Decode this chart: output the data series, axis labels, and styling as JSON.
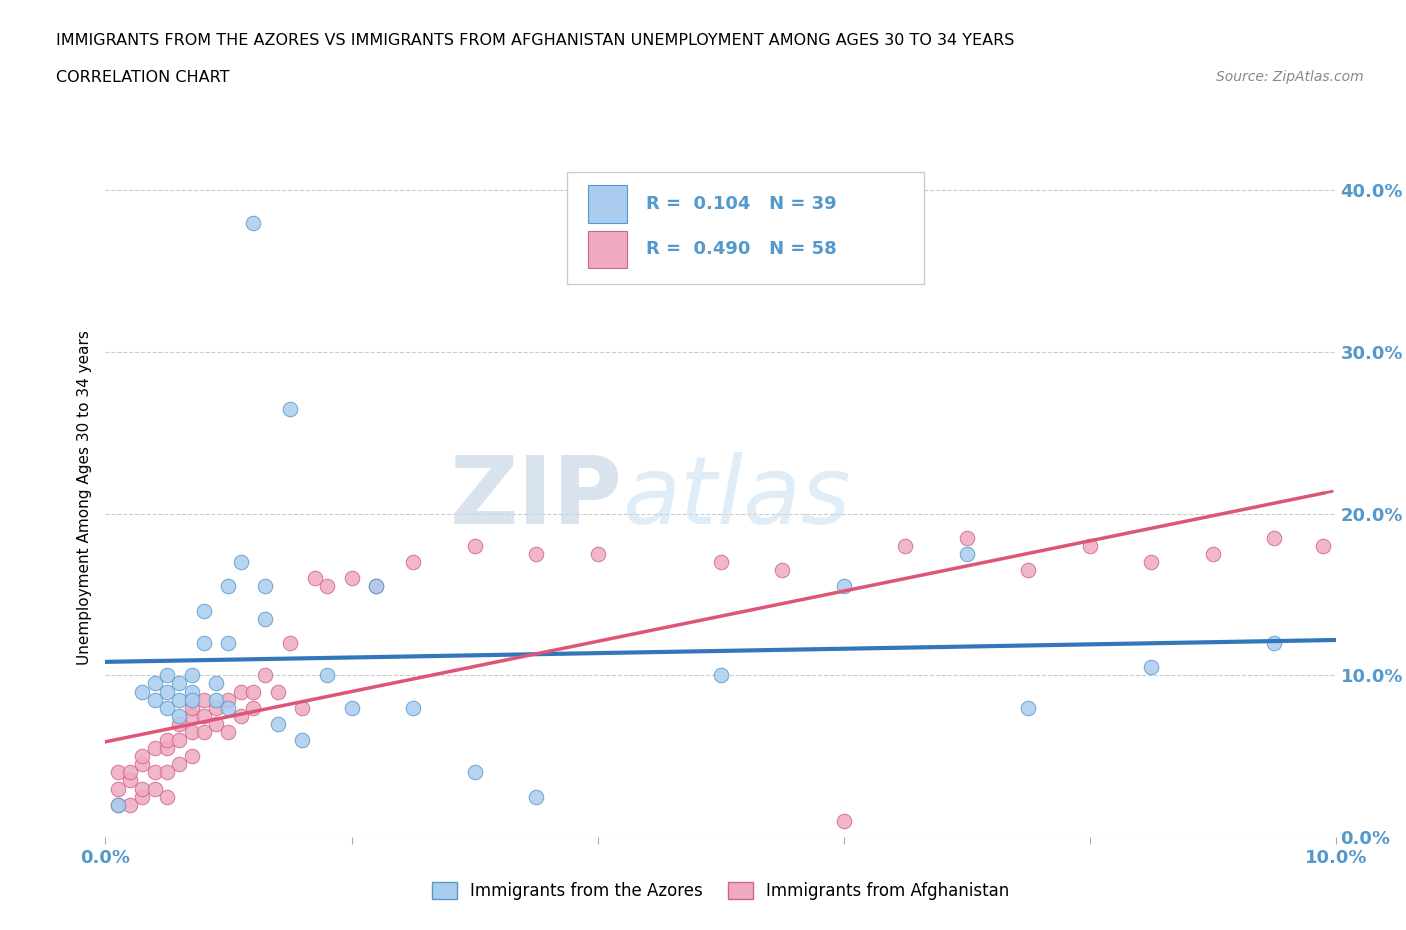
{
  "title_line1": "IMMIGRANTS FROM THE AZORES VS IMMIGRANTS FROM AFGHANISTAN UNEMPLOYMENT AMONG AGES 30 TO 34 YEARS",
  "title_line2": "CORRELATION CHART",
  "source_text": "Source: ZipAtlas.com",
  "ylabel": "Unemployment Among Ages 30 to 34 years",
  "xlim": [
    0.0,
    0.1
  ],
  "ylim": [
    0.0,
    0.42
  ],
  "xtick_positions": [
    0.0,
    0.02,
    0.04,
    0.06,
    0.08,
    0.1
  ],
  "ytick_positions": [
    0.0,
    0.1,
    0.2,
    0.3,
    0.4
  ],
  "grid_color": "#cccccc",
  "background_color": "#ffffff",
  "azores_color": "#aaccee",
  "afghanistan_color": "#f0aac0",
  "azores_edge_color": "#5599cc",
  "afghanistan_edge_color": "#cc6688",
  "azores_line_color": "#3377bb",
  "afghanistan_line_color": "#dd5577",
  "watermark_zip": "ZIP",
  "watermark_atlas": "atlas",
  "azores_R": 0.104,
  "azores_N": 39,
  "afghanistan_R": 0.49,
  "afghanistan_N": 58,
  "tick_label_color": "#5599cc",
  "azores_x": [
    0.001,
    0.003,
    0.004,
    0.004,
    0.005,
    0.005,
    0.005,
    0.006,
    0.006,
    0.006,
    0.007,
    0.007,
    0.007,
    0.008,
    0.008,
    0.009,
    0.009,
    0.01,
    0.01,
    0.01,
    0.011,
    0.012,
    0.013,
    0.013,
    0.014,
    0.015,
    0.016,
    0.018,
    0.02,
    0.022,
    0.025,
    0.03,
    0.035,
    0.05,
    0.06,
    0.07,
    0.075,
    0.085,
    0.095
  ],
  "azores_y": [
    0.02,
    0.09,
    0.085,
    0.095,
    0.1,
    0.09,
    0.08,
    0.095,
    0.085,
    0.075,
    0.1,
    0.09,
    0.085,
    0.14,
    0.12,
    0.095,
    0.085,
    0.155,
    0.12,
    0.08,
    0.17,
    0.38,
    0.155,
    0.135,
    0.07,
    0.265,
    0.06,
    0.1,
    0.08,
    0.155,
    0.08,
    0.04,
    0.025,
    0.1,
    0.155,
    0.175,
    0.08,
    0.105,
    0.12
  ],
  "afghanistan_x": [
    0.001,
    0.001,
    0.001,
    0.002,
    0.002,
    0.002,
    0.003,
    0.003,
    0.003,
    0.003,
    0.004,
    0.004,
    0.004,
    0.005,
    0.005,
    0.005,
    0.005,
    0.006,
    0.006,
    0.006,
    0.007,
    0.007,
    0.007,
    0.007,
    0.008,
    0.008,
    0.008,
    0.009,
    0.009,
    0.01,
    0.01,
    0.011,
    0.011,
    0.012,
    0.012,
    0.013,
    0.014,
    0.015,
    0.016,
    0.017,
    0.018,
    0.02,
    0.022,
    0.025,
    0.03,
    0.035,
    0.04,
    0.05,
    0.055,
    0.06,
    0.065,
    0.07,
    0.075,
    0.08,
    0.085,
    0.09,
    0.095,
    0.099
  ],
  "afghanistan_y": [
    0.02,
    0.03,
    0.04,
    0.02,
    0.035,
    0.04,
    0.025,
    0.03,
    0.045,
    0.05,
    0.03,
    0.04,
    0.055,
    0.025,
    0.04,
    0.055,
    0.06,
    0.045,
    0.06,
    0.07,
    0.05,
    0.065,
    0.075,
    0.08,
    0.065,
    0.075,
    0.085,
    0.07,
    0.08,
    0.065,
    0.085,
    0.075,
    0.09,
    0.08,
    0.09,
    0.1,
    0.09,
    0.12,
    0.08,
    0.16,
    0.155,
    0.16,
    0.155,
    0.17,
    0.18,
    0.175,
    0.175,
    0.17,
    0.165,
    0.01,
    0.18,
    0.185,
    0.165,
    0.18,
    0.17,
    0.175,
    0.185,
    0.18
  ]
}
